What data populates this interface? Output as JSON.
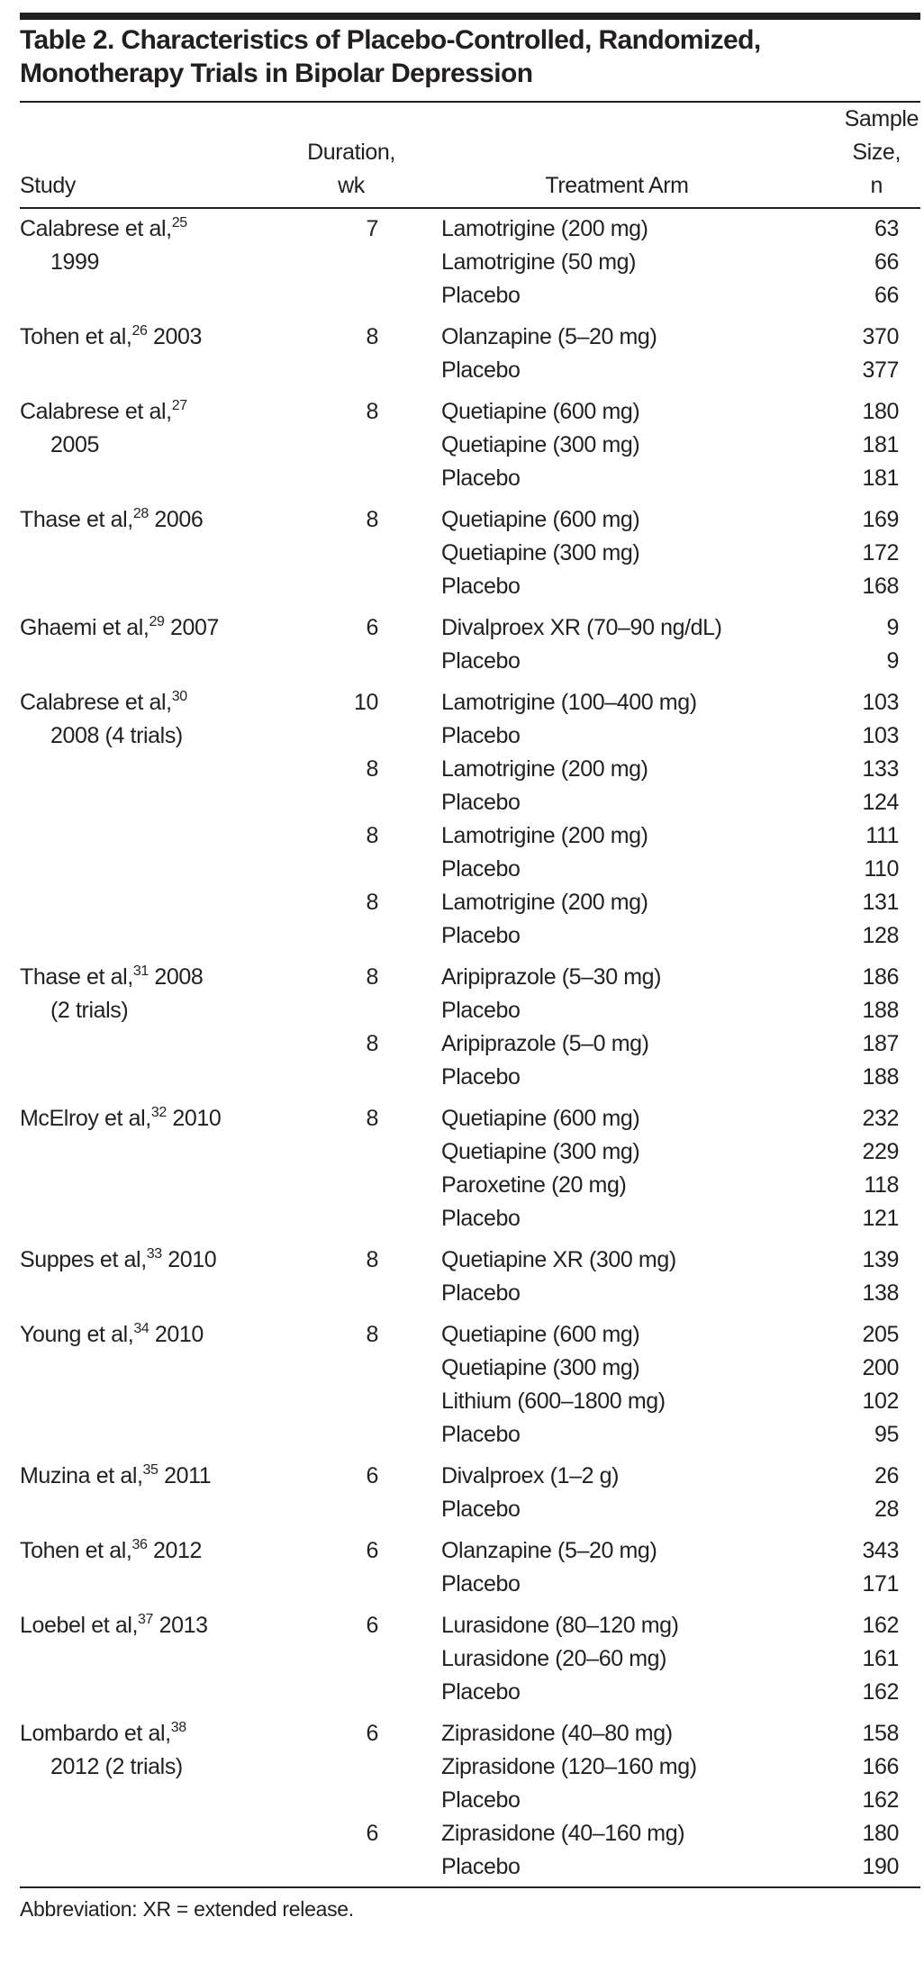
{
  "title_line1": "Table 2. Characteristics of Placebo-Controlled, Randomized,",
  "title_line2": "Monotherapy Trials in Bipolar Depression",
  "headers": {
    "study": "Study",
    "duration_1": "Duration,",
    "duration_2": "wk",
    "arm": "Treatment Arm",
    "n_1": "Sample",
    "n_2": "Size,",
    "n_3": "n"
  },
  "groups": [
    {
      "pre": "Calabrese et al,",
      "ref": "25",
      "post": "",
      "cont": "1999",
      "trials": [
        {
          "dur": "7",
          "arms": [
            [
              "Lamotrigine (200 mg)",
              "63"
            ],
            [
              "Lamotrigine (50 mg)",
              "66"
            ],
            [
              "Placebo",
              "66"
            ]
          ]
        }
      ]
    },
    {
      "pre": "Tohen et al,",
      "ref": "26",
      "post": " 2003",
      "cont": "",
      "trials": [
        {
          "dur": "8",
          "arms": [
            [
              "Olanzapine (5–20 mg)",
              "370"
            ],
            [
              "Placebo",
              "377"
            ]
          ]
        }
      ]
    },
    {
      "pre": "Calabrese et al,",
      "ref": "27",
      "post": "",
      "cont": "2005",
      "trials": [
        {
          "dur": "8",
          "arms": [
            [
              "Quetiapine (600 mg)",
              "180"
            ],
            [
              "Quetiapine (300 mg)",
              "181"
            ],
            [
              "Placebo",
              "181"
            ]
          ]
        }
      ]
    },
    {
      "pre": "Thase et al,",
      "ref": "28",
      "post": " 2006",
      "cont": "",
      "trials": [
        {
          "dur": "8",
          "arms": [
            [
              "Quetiapine (600 mg)",
              "169"
            ],
            [
              "Quetiapine (300 mg)",
              "172"
            ],
            [
              "Placebo",
              "168"
            ]
          ]
        }
      ]
    },
    {
      "pre": "Ghaemi et al,",
      "ref": "29",
      "post": " 2007",
      "cont": "",
      "trials": [
        {
          "dur": "6",
          "arms": [
            [
              "Divalproex XR (70–90 ng/dL)",
              "9"
            ],
            [
              "Placebo",
              "9"
            ]
          ]
        }
      ]
    },
    {
      "pre": "Calabrese et al,",
      "ref": "30",
      "post": "",
      "cont": "2008 (4 trials)",
      "trials": [
        {
          "dur": "10",
          "arms": [
            [
              "Lamotrigine (100–400 mg)",
              "103"
            ],
            [
              "Placebo",
              "103"
            ]
          ]
        },
        {
          "dur": "8",
          "arms": [
            [
              "Lamotrigine (200 mg)",
              "133"
            ],
            [
              "Placebo",
              "124"
            ]
          ]
        },
        {
          "dur": "8",
          "arms": [
            [
              "Lamotrigine (200 mg)",
              "111"
            ],
            [
              "Placebo",
              "110"
            ]
          ]
        },
        {
          "dur": "8",
          "arms": [
            [
              "Lamotrigine (200 mg)",
              "131"
            ],
            [
              "Placebo",
              "128"
            ]
          ]
        }
      ]
    },
    {
      "pre": "Thase et al,",
      "ref": "31",
      "post": " 2008",
      "cont": "(2 trials)",
      "trials": [
        {
          "dur": "8",
          "arms": [
            [
              "Aripiprazole (5–30 mg)",
              "186"
            ],
            [
              "Placebo",
              "188"
            ]
          ]
        },
        {
          "dur": "8",
          "arms": [
            [
              "Aripiprazole (5–0 mg)",
              "187"
            ],
            [
              "Placebo",
              "188"
            ]
          ]
        }
      ]
    },
    {
      "pre": "McElroy et al,",
      "ref": "32",
      "post": " 2010",
      "cont": "",
      "trials": [
        {
          "dur": "8",
          "arms": [
            [
              "Quetiapine (600 mg)",
              "232"
            ],
            [
              "Quetiapine (300 mg)",
              "229"
            ],
            [
              "Paroxetine (20 mg)",
              "118"
            ],
            [
              "Placebo",
              "121"
            ]
          ]
        }
      ]
    },
    {
      "pre": "Suppes et al,",
      "ref": "33",
      "post": " 2010",
      "cont": "",
      "trials": [
        {
          "dur": "8",
          "arms": [
            [
              "Quetiapine XR (300 mg)",
              "139"
            ],
            [
              "Placebo",
              "138"
            ]
          ]
        }
      ]
    },
    {
      "pre": "Young et al,",
      "ref": "34",
      "post": " 2010",
      "cont": "",
      "trials": [
        {
          "dur": "8",
          "arms": [
            [
              "Quetiapine (600 mg)",
              "205"
            ],
            [
              "Quetiapine (300 mg)",
              "200"
            ],
            [
              "Lithium (600–1800 mg)",
              "102"
            ],
            [
              "Placebo",
              "95"
            ]
          ]
        }
      ]
    },
    {
      "pre": "Muzina et al,",
      "ref": "35",
      "post": " 2011",
      "cont": "",
      "trials": [
        {
          "dur": "6",
          "arms": [
            [
              "Divalproex (1–2 g)",
              "26"
            ],
            [
              "Placebo",
              "28"
            ]
          ]
        }
      ]
    },
    {
      "pre": "Tohen et al,",
      "ref": "36",
      "post": " 2012",
      "cont": "",
      "trials": [
        {
          "dur": "6",
          "arms": [
            [
              "Olanzapine (5–20 mg)",
              "343"
            ],
            [
              "Placebo",
              "171"
            ]
          ]
        }
      ]
    },
    {
      "pre": "Loebel et al,",
      "ref": "37",
      "post": " 2013",
      "cont": "",
      "trials": [
        {
          "dur": "6",
          "arms": [
            [
              "Lurasidone (80–120 mg)",
              "162"
            ],
            [
              "Lurasidone (20–60 mg)",
              "161"
            ],
            [
              "Placebo",
              "162"
            ]
          ]
        }
      ]
    },
    {
      "pre": "Lombardo et al,",
      "ref": "38",
      "post": "",
      "cont": "2012 (2 trials)",
      "trials": [
        {
          "dur": "6",
          "arms": [
            [
              "Ziprasidone (40–80 mg)",
              "158"
            ],
            [
              "Ziprasidone (120–160 mg)",
              "166"
            ],
            [
              "Placebo",
              "162"
            ]
          ]
        },
        {
          "dur": "6",
          "arms": [
            [
              "Ziprasidone (40–160 mg)",
              "180"
            ],
            [
              "Placebo",
              "190"
            ]
          ]
        }
      ]
    }
  ],
  "footer": "Abbreviation: XR = extended release."
}
